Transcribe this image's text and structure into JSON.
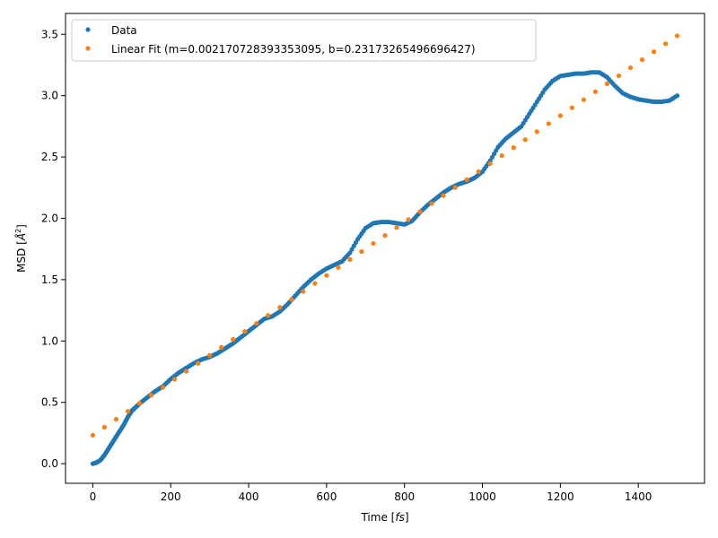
{
  "chart_data": {
    "type": "scatter",
    "xlabel": "Time [fs]",
    "ylabel": "MSD [Å²]",
    "xlim": [
      -70,
      1570
    ],
    "ylim": [
      -0.16,
      3.67
    ],
    "xticks": [
      0,
      200,
      400,
      600,
      800,
      1000,
      1200,
      1400
    ],
    "yticks": [
      0.0,
      0.5,
      1.0,
      1.5,
      2.0,
      2.5,
      3.0,
      3.5
    ],
    "xtick_labels": [
      "0",
      "200",
      "400",
      "600",
      "800",
      "1000",
      "1200",
      "1400"
    ],
    "ytick_labels": [
      "0.0",
      "0.5",
      "1.0",
      "1.5",
      "2.0",
      "2.5",
      "3.0",
      "3.5"
    ],
    "grid": false,
    "legend_position": "top-left",
    "series": [
      {
        "name": "Data",
        "color": "#1f77b4",
        "x": [
          0,
          10,
          20,
          30,
          40,
          50,
          60,
          70,
          80,
          90,
          100,
          110,
          120,
          140,
          160,
          180,
          200,
          220,
          240,
          260,
          280,
          300,
          320,
          340,
          360,
          380,
          400,
          420,
          440,
          460,
          480,
          500,
          520,
          540,
          560,
          580,
          600,
          620,
          640,
          660,
          680,
          700,
          720,
          740,
          760,
          780,
          800,
          820,
          840,
          860,
          880,
          900,
          920,
          940,
          960,
          980,
          1000,
          1020,
          1040,
          1060,
          1080,
          1100,
          1120,
          1140,
          1160,
          1180,
          1200,
          1220,
          1240,
          1260,
          1280,
          1300,
          1320,
          1340,
          1360,
          1380,
          1400,
          1420,
          1440,
          1460,
          1480,
          1500
        ],
        "y": [
          0.0,
          0.01,
          0.03,
          0.07,
          0.12,
          0.17,
          0.22,
          0.27,
          0.32,
          0.38,
          0.43,
          0.46,
          0.49,
          0.54,
          0.59,
          0.63,
          0.69,
          0.74,
          0.78,
          0.82,
          0.85,
          0.87,
          0.9,
          0.94,
          0.98,
          1.03,
          1.08,
          1.13,
          1.18,
          1.2,
          1.24,
          1.3,
          1.37,
          1.44,
          1.5,
          1.55,
          1.59,
          1.62,
          1.65,
          1.72,
          1.83,
          1.92,
          1.96,
          1.97,
          1.97,
          1.96,
          1.95,
          1.98,
          2.05,
          2.11,
          2.16,
          2.21,
          2.25,
          2.28,
          2.3,
          2.33,
          2.38,
          2.47,
          2.58,
          2.65,
          2.7,
          2.75,
          2.85,
          2.95,
          3.05,
          3.12,
          3.16,
          3.17,
          3.18,
          3.18,
          3.19,
          3.19,
          3.15,
          3.08,
          3.02,
          2.99,
          2.97,
          2.96,
          2.95,
          2.95,
          2.96,
          3.0
        ]
      },
      {
        "name": "Linear Fit (m=0.002170728393353095, b=0.23173265496696427)",
        "color": "#ff7f0e",
        "m": 0.002170728393353095,
        "b": 0.23173265496696427,
        "x": [
          0,
          30,
          60,
          90,
          120,
          150,
          180,
          210,
          240,
          270,
          300,
          330,
          360,
          390,
          420,
          450,
          480,
          510,
          540,
          570,
          600,
          630,
          660,
          690,
          720,
          750,
          780,
          810,
          840,
          870,
          900,
          930,
          960,
          990,
          1020,
          1050,
          1080,
          1110,
          1140,
          1170,
          1200,
          1230,
          1260,
          1290,
          1320,
          1350,
          1380,
          1410,
          1440,
          1470,
          1500
        ]
      }
    ]
  }
}
